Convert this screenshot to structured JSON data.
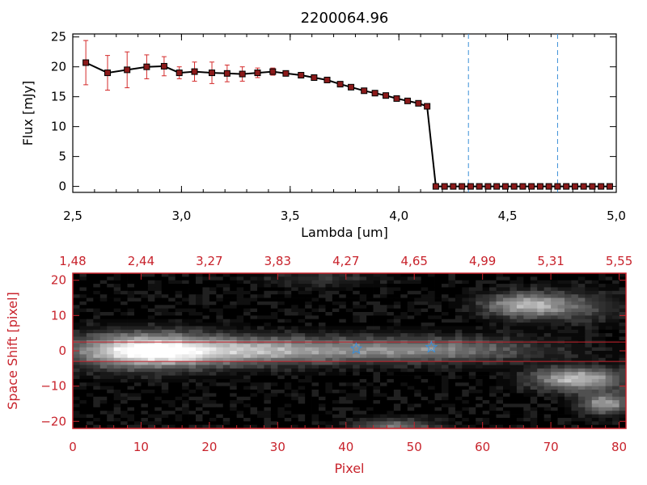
{
  "title": "2200064.96",
  "colors": {
    "spectrum_line": "#000000",
    "marker_fill": "#8b1a1a",
    "error_bar": "#d42a2a",
    "guide_line": "#3a8fd8",
    "bottom_axis": "#c8232c",
    "star": "#3a8fd8"
  },
  "chart_data": [
    {
      "type": "line",
      "xlabel": "Lambda [um]",
      "ylabel": "Flux [mJy]",
      "xlim": [
        2.5,
        5.0
      ],
      "ylim": [
        -1,
        25.5
      ],
      "x_ticks": [
        "2.5",
        "3.0",
        "3.5",
        "4.0",
        "4.5",
        "5.0"
      ],
      "y_ticks": [
        "0",
        "5",
        "10",
        "15",
        "20",
        "25"
      ],
      "vertical_lines_x": [
        4.32,
        4.73
      ],
      "series": [
        {
          "x": [
            2.56,
            2.66,
            2.75,
            2.84,
            2.92,
            2.99,
            3.06,
            3.14,
            3.21,
            3.28,
            3.35,
            3.42,
            3.48,
            3.55,
            3.61,
            3.67,
            3.73,
            3.78,
            3.84,
            3.89,
            3.94,
            3.99,
            4.04,
            4.09,
            4.13,
            4.17,
            4.21,
            4.25,
            4.29,
            4.33,
            4.37,
            4.41,
            4.45,
            4.49,
            4.53,
            4.57,
            4.61,
            4.65,
            4.69,
            4.73,
            4.77,
            4.81,
            4.85,
            4.89,
            4.93,
            4.97
          ],
          "y": [
            20.7,
            19.0,
            19.5,
            20.0,
            20.1,
            19.0,
            19.2,
            19.0,
            18.9,
            18.8,
            19.0,
            19.2,
            18.9,
            18.6,
            18.2,
            17.8,
            17.1,
            16.6,
            16.0,
            15.6,
            15.2,
            14.7,
            14.3,
            13.9,
            13.4,
            0,
            0,
            0,
            0,
            0,
            0,
            0,
            0,
            0,
            0,
            0,
            0,
            0,
            0,
            0,
            0,
            0,
            0,
            0,
            0,
            0
          ],
          "yerr": [
            3.7,
            2.9,
            3.0,
            2.0,
            1.6,
            1.0,
            1.6,
            1.8,
            1.4,
            1.2,
            0.8,
            0.6,
            0.4,
            0.3,
            0.3,
            0.3,
            0.3,
            0.3,
            0.3,
            0.3,
            0.3,
            0.3,
            0.3,
            0.3,
            0.3,
            0,
            0,
            0,
            0,
            0,
            0,
            0,
            0,
            0,
            0,
            0,
            0,
            0,
            0,
            0,
            0,
            0,
            0,
            0,
            0,
            0
          ]
        }
      ]
    },
    {
      "type": "heatmap",
      "xlabel": "Pixel",
      "ylabel": "Space Shift [pixel]",
      "xlim": [
        0,
        81
      ],
      "ylim": [
        -22,
        22
      ],
      "x_ticks": [
        "0",
        "10",
        "20",
        "30",
        "40",
        "50",
        "60",
        "70",
        "80"
      ],
      "y_ticks": [
        "-20",
        "-10",
        "0",
        "10",
        "20"
      ],
      "top_ticks": [
        "1.48",
        "2.44",
        "3.27",
        "3.83",
        "4.27",
        "4.65",
        "4.99",
        "5.31",
        "5.55"
      ],
      "horizontal_lines_y": [
        2.5,
        -3.0
      ],
      "star_markers": [
        {
          "x": 41.5,
          "y": 0.6
        },
        {
          "x": 52.5,
          "y": 1.0
        }
      ],
      "sources": [
        {
          "x": 10.5,
          "y": 0,
          "peak": 255,
          "sx": 7,
          "sy": 3.2
        },
        {
          "x": 26,
          "y": 0,
          "peak": 150,
          "sx": 9,
          "sy": 2.6
        },
        {
          "x": 50,
          "y": 0.3,
          "peak": 130,
          "sx": 12,
          "sy": 2.4
        },
        {
          "x": 66,
          "y": 13,
          "peak": 150,
          "sx": 4,
          "sy": 2.2
        },
        {
          "x": 73,
          "y": 12.5,
          "peak": 70,
          "sx": 5,
          "sy": 3
        },
        {
          "x": 74,
          "y": -8,
          "peak": 185,
          "sx": 4.5,
          "sy": 2.2
        },
        {
          "x": 78,
          "y": -15,
          "peak": 150,
          "sx": 2.5,
          "sy": 2
        },
        {
          "x": 47,
          "y": -21.5,
          "peak": 110,
          "sx": 4,
          "sy": 1.5
        },
        {
          "x": 36,
          "y": 20.5,
          "peak": 40,
          "sx": 6,
          "sy": 1.5
        }
      ]
    }
  ]
}
